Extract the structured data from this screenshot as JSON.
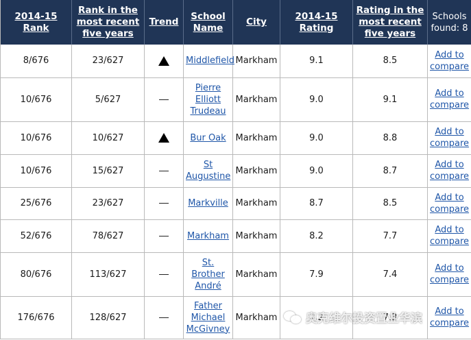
{
  "headers": {
    "rank": "2014-15 Rank",
    "rank5": "Rank in the most recent five years",
    "trend": "Trend",
    "school": "School Name",
    "city": "City",
    "rating": "2014-15 Rating",
    "rating5": "Rating in the most recent five years",
    "found": "Schools found: 8"
  },
  "compare_label": "Add to compare",
  "rows": [
    {
      "rank": "8/676",
      "rank5": "23/627",
      "trend": "up",
      "school": "Middlefield",
      "city": "Markham",
      "rating": "9.1",
      "rating5": "8.5"
    },
    {
      "rank": "10/676",
      "rank5": "5/627",
      "trend": "flat",
      "school": "Pierre Elliott Trudeau",
      "city": "Markham",
      "rating": "9.0",
      "rating5": "9.1"
    },
    {
      "rank": "10/676",
      "rank5": "10/627",
      "trend": "up",
      "school": "Bur Oak",
      "city": "Markham",
      "rating": "9.0",
      "rating5": "8.8"
    },
    {
      "rank": "10/676",
      "rank5": "15/627",
      "trend": "flat",
      "school": "St Augustine",
      "city": "Markham",
      "rating": "9.0",
      "rating5": "8.7"
    },
    {
      "rank": "25/676",
      "rank5": "23/627",
      "trend": "flat",
      "school": "Markville",
      "city": "Markham",
      "rating": "8.7",
      "rating5": "8.5"
    },
    {
      "rank": "52/676",
      "rank5": "78/627",
      "trend": "flat",
      "school": "Markham",
      "city": "Markham",
      "rating": "8.2",
      "rating5": "7.7"
    },
    {
      "rank": "80/676",
      "rank5": "113/627",
      "trend": "flat",
      "school": "St. Brother André",
      "city": "Markham",
      "rating": "7.9",
      "rating5": "7.4"
    },
    {
      "rank": "176/676",
      "rank5": "128/627",
      "trend": "flat",
      "school": "Father Michael McGivney",
      "city": "Markham",
      "rating": "7.2",
      "rating5": "7.3"
    }
  ],
  "watermark": "奥克维尔投资置业华滨"
}
